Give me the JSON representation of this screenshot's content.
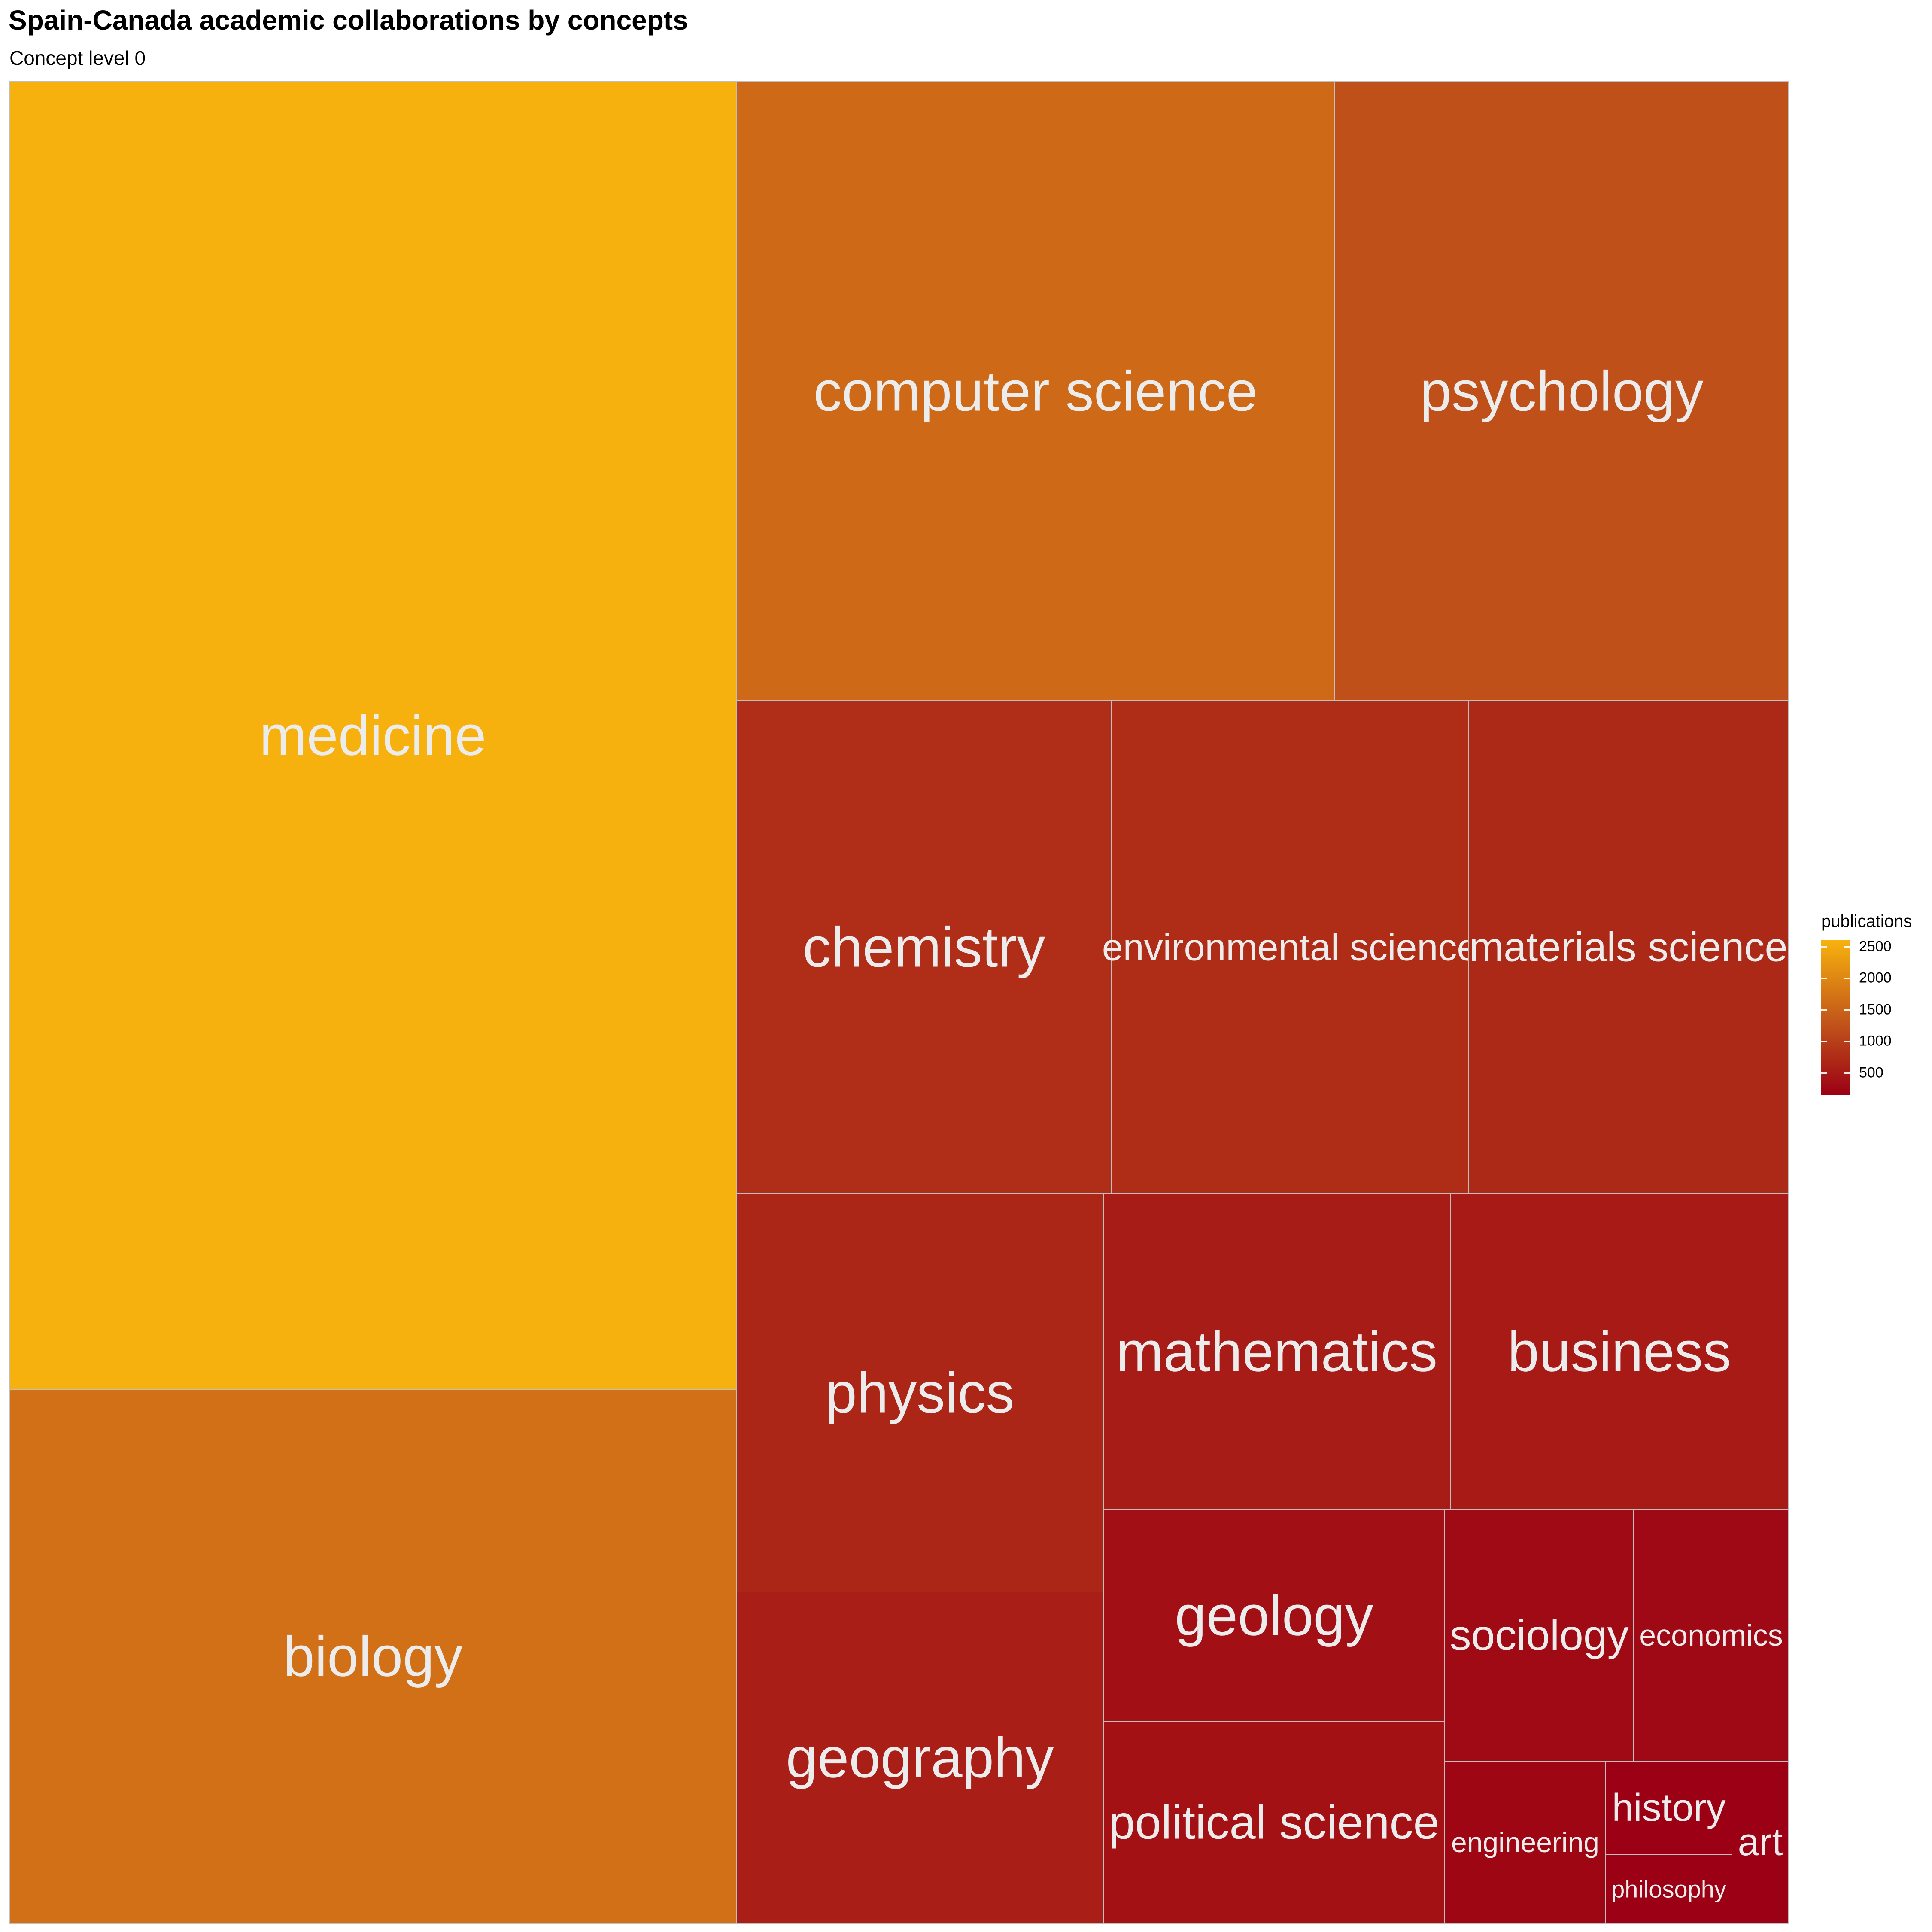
{
  "title": "Spain-Canada academic collaborations by concepts",
  "subtitle": "Concept level 0",
  "chart_data": {
    "type": "treemap",
    "title": "Spain-Canada academic collaborations by concepts",
    "subtitle": "Concept level 0",
    "value_name": "publications",
    "color_scale": {
      "low": "#9b0014",
      "mid": "#c0521a",
      "high": "#f7b20e",
      "domain": [
        150,
        2600
      ],
      "ticks": [
        500,
        1000,
        1500,
        2000,
        2500
      ]
    },
    "items": [
      {
        "label": "medicine",
        "value": 2580
      },
      {
        "label": "biology",
        "value": 1680
      },
      {
        "label": "computer science",
        "value": 1590
      },
      {
        "label": "psychology",
        "value": 1220
      },
      {
        "label": "chemistry",
        "value": 770
      },
      {
        "label": "environmental science",
        "value": 740
      },
      {
        "label": "materials science",
        "value": 700
      },
      {
        "label": "physics",
        "value": 660
      },
      {
        "label": "mathematics",
        "value": 520
      },
      {
        "label": "business",
        "value": 500
      },
      {
        "label": "geography",
        "value": 560
      },
      {
        "label": "geology",
        "value": 370
      },
      {
        "label": "political science",
        "value": 380
      },
      {
        "label": "sociology",
        "value": 285
      },
      {
        "label": "economics",
        "value": 270
      },
      {
        "label": "engineering",
        "value": 230
      },
      {
        "label": "history",
        "value": 140
      },
      {
        "label": "philosophy",
        "value": 120
      },
      {
        "label": "art",
        "value": 100
      }
    ]
  }
}
